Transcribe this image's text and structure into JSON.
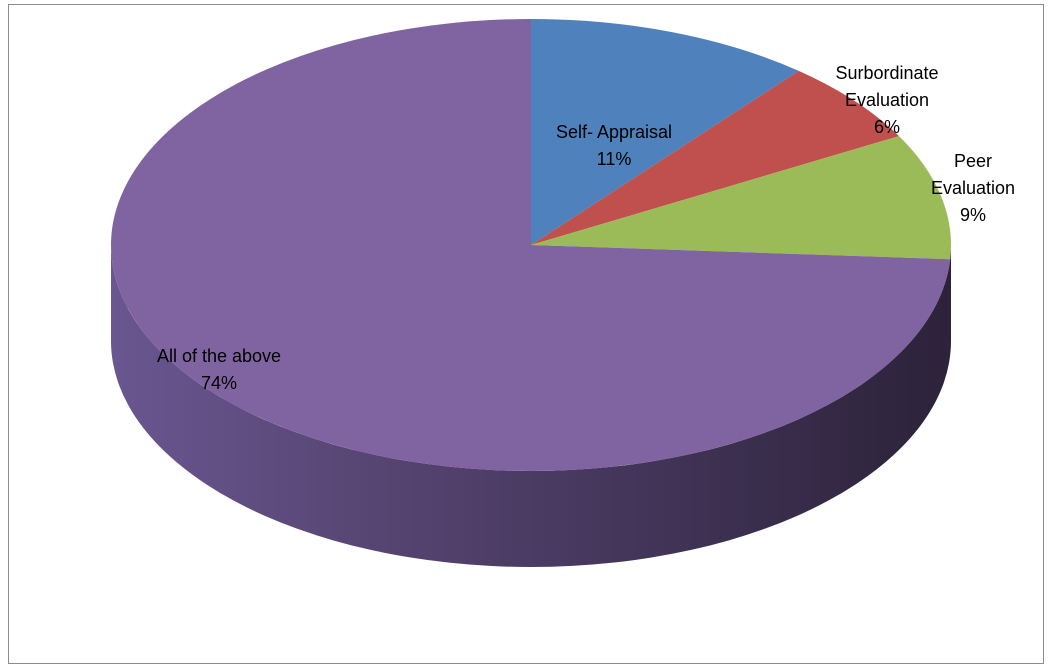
{
  "chart_data": {
    "type": "pie",
    "title": "",
    "categories": [
      "Self- Appraisal",
      "Surbordinate Evaluation",
      "Peer Evaluation",
      "All of the above"
    ],
    "values": [
      11,
      6,
      9,
      74
    ],
    "labels": [
      {
        "category_lines": [
          "Self- Appraisal"
        ],
        "percent": "11%"
      },
      {
        "category_lines": [
          "Surbordinate",
          "Evaluation"
        ],
        "percent": "6%"
      },
      {
        "category_lines": [
          "Peer",
          "Evaluation"
        ],
        "percent": "9%"
      },
      {
        "category_lines": [
          "All of the above"
        ],
        "percent": "74%"
      }
    ],
    "colors": [
      "#4f81bd",
      "#c0504d",
      "#9bbb59",
      "#8064a2"
    ],
    "side_colors": [
      "#2f4f78",
      "#7a2f2d",
      "#5f7a33",
      "#3d2f52"
    ],
    "legend": "none",
    "style": "3d"
  }
}
